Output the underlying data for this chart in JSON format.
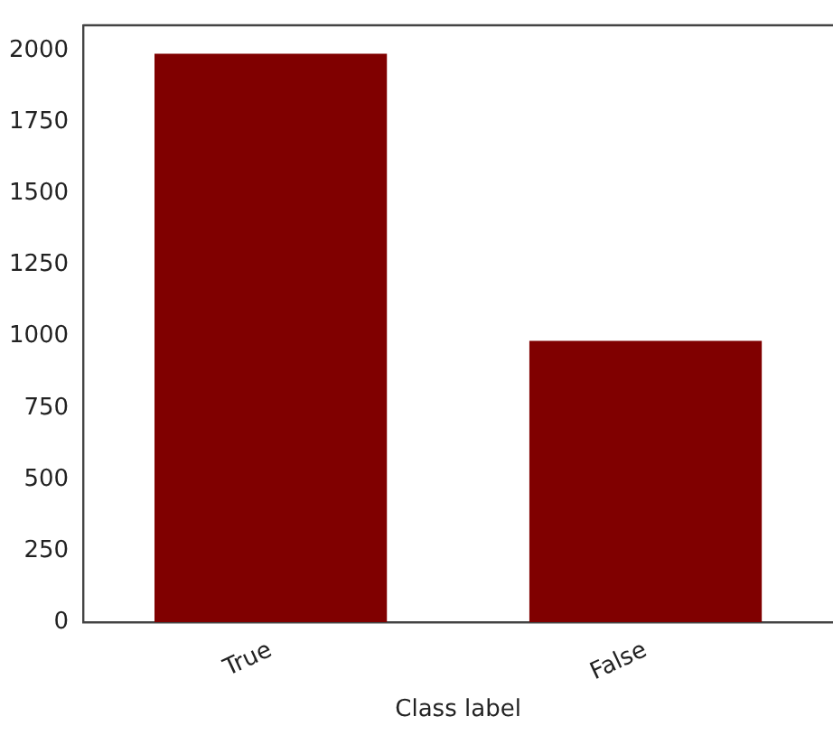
{
  "chart_data": {
    "type": "bar",
    "xlabel": "Class label",
    "categories": [
      "True",
      "False"
    ],
    "values": [
      1990,
      985
    ],
    "color": "#800000",
    "ylim": [
      0,
      2090
    ],
    "yticks": [
      0,
      250,
      500,
      750,
      1000,
      1250,
      1500,
      1750,
      2000
    ],
    "grid": false,
    "legend": false
  }
}
